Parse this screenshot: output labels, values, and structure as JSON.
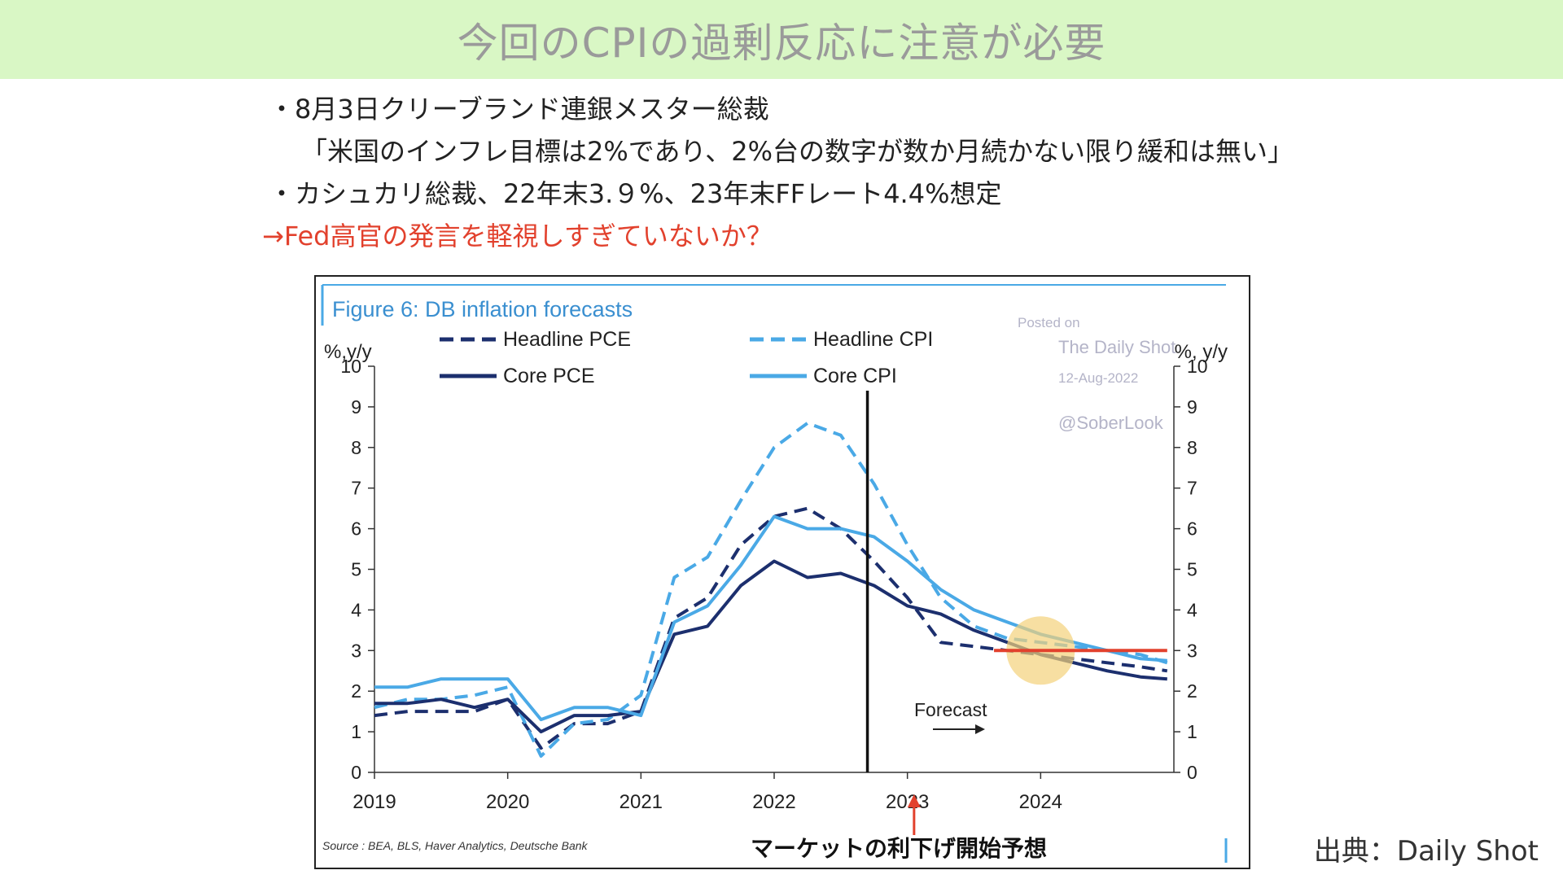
{
  "banner": {
    "title": "今回のCPIの過剰反応に注意が必要"
  },
  "bullets": [
    "・8月3日クリーブランド連銀メスター総裁",
    "「米国のインフレ目標は2%であり、2%台の数字が数か月続かない限り緩和は無い」",
    "・カシュカリ総裁、22年末3.９%、23年末FFレート4.4%想定",
    "→Fed高官の発言を軽視しすぎていないか？"
  ],
  "colors": {
    "accent_red": "#e2412d",
    "navy": "#1c2f6e",
    "light_blue": "#4aa9e6",
    "banner_bg": "#d9f7c5",
    "highlight": "#f3d27a"
  },
  "chart_data": {
    "type": "line",
    "title": "Figure 6: DB inflation forecasts",
    "ylabel_left": "%,y/y",
    "ylabel_right": "%, y/y",
    "ylim": [
      0,
      10
    ],
    "yticks": [
      "0",
      "1",
      "2",
      "3",
      "4",
      "5",
      "6",
      "7",
      "8",
      "9",
      "10"
    ],
    "xticks": [
      "2019",
      "2020",
      "2021",
      "2022",
      "2023",
      "2024"
    ],
    "legend": [
      {
        "name": "Headline PCE",
        "color": "#1c2f6e",
        "dashed": true
      },
      {
        "name": "Headline CPI",
        "color": "#4aa9e6",
        "dashed": true
      },
      {
        "name": "Core PCE",
        "color": "#1c2f6e",
        "dashed": false
      },
      {
        "name": "Core CPI",
        "color": "#4aa9e6",
        "dashed": false
      }
    ],
    "legend_position": "top",
    "series": [
      {
        "name": "Headline PCE",
        "color": "#1c2f6e",
        "dashed": true,
        "x": [
          2019.0,
          2019.25,
          2019.5,
          2019.75,
          2020.0,
          2020.25,
          2020.5,
          2020.75,
          2021.0,
          2021.25,
          2021.5,
          2021.75,
          2022.0,
          2022.25,
          2022.5,
          2022.75,
          2023.0,
          2023.25,
          2023.5,
          2023.75,
          2024.0,
          2024.25,
          2024.5,
          2024.75,
          2024.95
        ],
        "y": [
          1.4,
          1.5,
          1.5,
          1.5,
          1.8,
          0.6,
          1.2,
          1.2,
          1.5,
          3.8,
          4.3,
          5.6,
          6.3,
          6.5,
          6.0,
          5.2,
          4.3,
          3.2,
          3.1,
          3.0,
          2.9,
          2.8,
          2.7,
          2.6,
          2.5
        ]
      },
      {
        "name": "Headline CPI",
        "color": "#4aa9e6",
        "dashed": true,
        "x": [
          2019.0,
          2019.25,
          2019.5,
          2019.75,
          2020.0,
          2020.25,
          2020.5,
          2020.75,
          2021.0,
          2021.25,
          2021.5,
          2021.75,
          2022.0,
          2022.25,
          2022.5,
          2022.75,
          2023.0,
          2023.25,
          2023.5,
          2023.75,
          2024.0,
          2024.25,
          2024.5,
          2024.75,
          2024.95
        ],
        "y": [
          1.6,
          1.8,
          1.8,
          1.9,
          2.1,
          0.4,
          1.2,
          1.3,
          1.9,
          4.8,
          5.3,
          6.7,
          8.0,
          8.6,
          8.3,
          7.1,
          5.6,
          4.3,
          3.6,
          3.3,
          3.2,
          3.1,
          3.0,
          2.9,
          2.7
        ]
      },
      {
        "name": "Core PCE",
        "color": "#1c2f6e",
        "dashed": false,
        "x": [
          2019.0,
          2019.25,
          2019.5,
          2019.75,
          2020.0,
          2020.25,
          2020.5,
          2020.75,
          2021.0,
          2021.25,
          2021.5,
          2021.75,
          2022.0,
          2022.25,
          2022.5,
          2022.75,
          2023.0,
          2023.25,
          2023.5,
          2023.75,
          2024.0,
          2024.25,
          2024.5,
          2024.75,
          2024.95
        ],
        "y": [
          1.7,
          1.7,
          1.8,
          1.6,
          1.8,
          1.0,
          1.4,
          1.4,
          1.5,
          3.4,
          3.6,
          4.6,
          5.2,
          4.8,
          4.9,
          4.6,
          4.1,
          3.9,
          3.5,
          3.2,
          2.9,
          2.7,
          2.5,
          2.35,
          2.3
        ]
      },
      {
        "name": "Core CPI",
        "color": "#4aa9e6",
        "dashed": false,
        "x": [
          2019.0,
          2019.25,
          2019.5,
          2019.75,
          2020.0,
          2020.25,
          2020.5,
          2020.75,
          2021.0,
          2021.25,
          2021.5,
          2021.75,
          2022.0,
          2022.25,
          2022.5,
          2022.75,
          2023.0,
          2023.25,
          2023.5,
          2023.75,
          2024.0,
          2024.25,
          2024.5,
          2024.75,
          2024.95
        ],
        "y": [
          2.1,
          2.1,
          2.3,
          2.3,
          2.3,
          1.3,
          1.6,
          1.6,
          1.4,
          3.7,
          4.1,
          5.1,
          6.3,
          6.0,
          6.0,
          5.8,
          5.2,
          4.5,
          4.0,
          3.7,
          3.4,
          3.2,
          3.0,
          2.8,
          2.75
        ]
      }
    ],
    "forecast_start_x": 2022.7,
    "forecast_label": "Forecast",
    "watermark": [
      "Posted on",
      "The Daily Shot",
      "12-Aug-2022",
      "@SoberLook"
    ],
    "source_note": "Source : BEA, BLS, Haver Analytics, Deutsche Bank",
    "reference_line": {
      "y": 3.0,
      "x_from": 2023.65,
      "x_to": 2024.95
    },
    "highlight_circle": {
      "x": 2024.0,
      "y": 3.0
    },
    "annotation_arrow_x": 2023.05,
    "annotation": "マーケットの利下げ開始予想"
  },
  "credit": "出典：Daily Shot"
}
